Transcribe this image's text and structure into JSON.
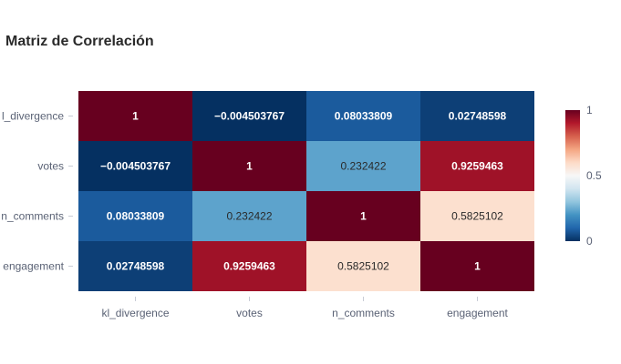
{
  "chart_data": {
    "type": "heatmap",
    "title": "Matriz de Correlación",
    "x_labels": [
      "kl_divergence",
      "votes",
      "n_comments",
      "engagement"
    ],
    "y_labels": [
      "kl_divergence",
      "votes",
      "n_comments",
      "engagement"
    ],
    "y_label_visible_text": [
      "l_divergence",
      "votes",
      "n_comments",
      "engagement"
    ],
    "z": [
      [
        1,
        -0.004503767,
        0.08033809,
        0.02748598
      ],
      [
        -0.004503767,
        1,
        0.232422,
        0.9259463
      ],
      [
        0.08033809,
        0.232422,
        1,
        0.5825102
      ],
      [
        0.02748598,
        0.9259463,
        0.5825102,
        1
      ]
    ],
    "cell_text": [
      [
        "1",
        "−0.004503767",
        "0.08033809",
        "0.02748598"
      ],
      [
        "−0.004503767",
        "1",
        "0.232422",
        "0.9259463"
      ],
      [
        "0.08033809",
        "0.232422",
        "1",
        "0.5825102"
      ],
      [
        "0.02748598",
        "0.9259463",
        "0.5825102",
        "1"
      ]
    ],
    "colorscale": [
      "#053061",
      "#2166ac",
      "#4393c3",
      "#92c5de",
      "#d1e5f0",
      "#f7f7f7",
      "#fddbc7",
      "#f4a582",
      "#d6604d",
      "#b2182b",
      "#67001f"
    ],
    "zrange": [
      0,
      1
    ],
    "colorbar": {
      "ticks": [
        0,
        0.5,
        1
      ],
      "tick_labels": [
        "0",
        "0.5",
        "1"
      ]
    },
    "grid": false,
    "legend": "colorbar-right"
  }
}
